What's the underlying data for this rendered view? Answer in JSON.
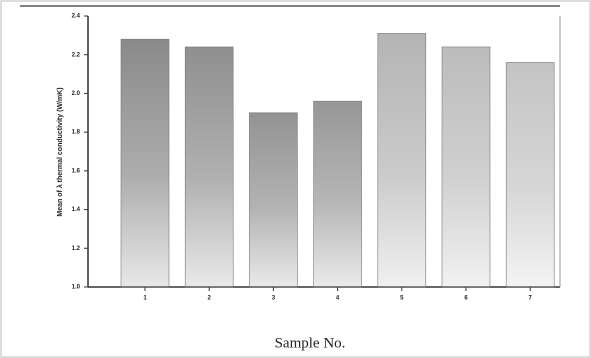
{
  "chart_data": {
    "type": "bar",
    "x_label": "Sample No.",
    "y_label": "Mean of λ thermal conductivity (W/mK)",
    "categories": [
      "1",
      "2",
      "3",
      "4",
      "5",
      "6",
      "7"
    ],
    "values": [
      2.28,
      2.24,
      1.9,
      1.96,
      2.31,
      2.24,
      2.16
    ],
    "colors": [
      "#8a8a8a",
      "#8f8f8f",
      "#939393",
      "#979797",
      "#b4b4b4",
      "#bcbcbc",
      "#c4c4c4"
    ],
    "ylim": [
      1.0,
      2.4
    ],
    "yticks": [
      {
        "value": 1.0,
        "label": "1.0"
      },
      1.2,
      1.4,
      1.6,
      1.8,
      {
        "value": 2.0,
        "label": "2.0"
      },
      2.2,
      2.4
    ],
    "grid": false
  }
}
